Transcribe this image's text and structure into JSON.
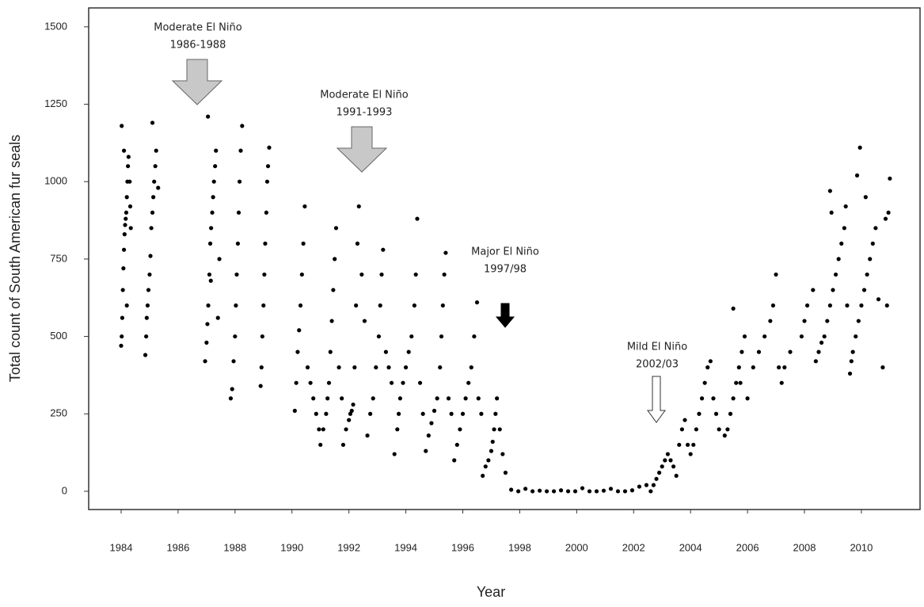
{
  "chart_data": {
    "type": "scatter",
    "x_label": "Year",
    "y_label": "Total count of South American fur seals",
    "color": "#000000",
    "xlim": [
      1982.86,
      2012.06
    ],
    "ylim": [
      -59,
      1561
    ],
    "xticks": [
      1984,
      1986,
      1988,
      1990,
      1992,
      1994,
      1996,
      1998,
      2000,
      2002,
      2004,
      2006,
      2008,
      2010
    ],
    "yticks": [
      0,
      250,
      500,
      750,
      1000,
      1250,
      1500
    ],
    "annotations": [
      [
        "Moderate El Niño",
        "1986-1988"
      ],
      [
        "Moderate El Niño",
        "1991-1993"
      ],
      [
        "Major El Niño",
        "1997/98"
      ],
      [
        "Mild El Niño",
        "2002/03"
      ]
    ],
    "x": [
      1984.0,
      1984.02,
      1984.04,
      1984.06,
      1984.08,
      1984.1,
      1984.12,
      1984.14,
      1984.16,
      1984.18,
      1984.2,
      1984.22,
      1984.24,
      1984.26,
      1984.02,
      1984.1,
      1984.3,
      1984.32,
      1984.34,
      1984.2,
      1984.85,
      1984.88,
      1984.9,
      1984.93,
      1984.96,
      1985.0,
      1985.03,
      1985.06,
      1985.1,
      1985.13,
      1985.16,
      1985.2,
      1985.23,
      1985.1,
      1985.3,
      1986.95,
      1987.0,
      1987.03,
      1987.06,
      1987.1,
      1987.13,
      1987.16,
      1987.2,
      1987.23,
      1987.26,
      1987.3,
      1987.33,
      1987.05,
      1987.15,
      1987.45,
      1987.4,
      1987.85,
      1987.9,
      1987.95,
      1988.0,
      1988.03,
      1988.06,
      1988.1,
      1988.13,
      1988.16,
      1988.2,
      1988.25,
      1988.9,
      1988.93,
      1988.96,
      1989.0,
      1989.03,
      1989.06,
      1989.1,
      1989.13,
      1989.16,
      1989.2,
      1990.1,
      1990.15,
      1990.2,
      1990.25,
      1990.3,
      1990.35,
      1990.4,
      1990.45,
      1990.55,
      1990.65,
      1990.75,
      1990.85,
      1990.95,
      1991.0,
      1991.1,
      1991.2,
      1991.25,
      1991.3,
      1991.35,
      1991.4,
      1991.45,
      1991.5,
      1991.55,
      1991.65,
      1991.75,
      1991.8,
      1991.9,
      1992.0,
      1992.05,
      1992.1,
      1992.15,
      1992.2,
      1992.25,
      1992.3,
      1992.35,
      1992.45,
      1992.55,
      1992.65,
      1992.75,
      1992.85,
      1992.95,
      1993.05,
      1993.1,
      1993.15,
      1993.2,
      1993.3,
      1993.4,
      1993.5,
      1993.6,
      1993.7,
      1993.75,
      1993.8,
      1993.9,
      1994.0,
      1994.1,
      1994.2,
      1994.3,
      1994.35,
      1994.4,
      1994.5,
      1994.6,
      1994.7,
      1994.8,
      1994.9,
      1995.0,
      1995.1,
      1995.2,
      1995.25,
      1995.3,
      1995.35,
      1995.4,
      1995.5,
      1995.6,
      1995.7,
      1995.8,
      1995.9,
      1996.0,
      1996.1,
      1996.2,
      1996.3,
      1996.4,
      1996.5,
      1996.55,
      1996.65,
      1996.7,
      1996.8,
      1996.9,
      1997.0,
      1997.05,
      1997.1,
      1997.15,
      1997.2,
      1997.3,
      1997.4,
      1997.5,
      1997.7,
      1997.95,
      1998.2,
      1998.45,
      1998.7,
      1998.95,
      1999.2,
      1999.45,
      1999.7,
      1999.95,
      2000.2,
      2000.45,
      2000.7,
      2000.95,
      2001.2,
      2001.45,
      2001.7,
      2001.95,
      2002.2,
      2002.45,
      2002.6,
      2002.7,
      2002.8,
      2002.9,
      2003.0,
      2003.1,
      2003.2,
      2003.3,
      2003.4,
      2003.5,
      2003.6,
      2003.7,
      2003.8,
      2003.9,
      2004.0,
      2004.1,
      2004.2,
      2004.3,
      2004.4,
      2004.5,
      2004.6,
      2004.7,
      2004.8,
      2004.9,
      2005.0,
      2005.2,
      2005.3,
      2005.4,
      2005.5,
      2005.6,
      2005.7,
      2005.8,
      2005.9,
      2005.5,
      2005.75,
      2006.0,
      2006.2,
      2006.4,
      2006.6,
      2006.8,
      2006.9,
      2007.0,
      2007.1,
      2007.2,
      2007.3,
      2007.5,
      2007.9,
      2008.0,
      2008.1,
      2008.3,
      2008.4,
      2008.5,
      2008.6,
      2008.7,
      2008.8,
      2008.9,
      2009.0,
      2009.1,
      2009.2,
      2009.3,
      2008.95,
      2008.9,
      2009.4,
      2009.45,
      2009.5,
      2009.6,
      2009.65,
      2009.7,
      2009.8,
      2009.9,
      2010.0,
      2010.1,
      2010.2,
      2010.3,
      2010.4,
      2010.5,
      2009.85,
      2009.95,
      2010.15,
      2010.6,
      2010.75,
      2010.85,
      2010.95,
      2011.0,
      2010.9
    ],
    "values": [
      470,
      500,
      560,
      650,
      720,
      780,
      830,
      860,
      880,
      900,
      950,
      1000,
      1050,
      1080,
      1180,
      1100,
      1000,
      920,
      850,
      600,
      440,
      500,
      560,
      600,
      650,
      700,
      760,
      850,
      900,
      950,
      1000,
      1050,
      1100,
      1190,
      980,
      420,
      480,
      540,
      600,
      700,
      800,
      850,
      900,
      950,
      1000,
      1050,
      1100,
      1210,
      680,
      750,
      560,
      300,
      330,
      420,
      500,
      600,
      700,
      800,
      900,
      1000,
      1100,
      1180,
      340,
      400,
      500,
      600,
      700,
      800,
      900,
      1000,
      1050,
      1110,
      260,
      350,
      450,
      520,
      600,
      700,
      800,
      920,
      400,
      350,
      300,
      250,
      200,
      150,
      200,
      250,
      300,
      350,
      450,
      550,
      650,
      750,
      850,
      400,
      300,
      150,
      200,
      230,
      250,
      260,
      280,
      400,
      600,
      800,
      920,
      700,
      550,
      180,
      250,
      300,
      400,
      500,
      600,
      700,
      780,
      450,
      400,
      350,
      120,
      200,
      250,
      300,
      350,
      400,
      450,
      500,
      600,
      700,
      880,
      350,
      250,
      130,
      180,
      220,
      260,
      300,
      400,
      500,
      600,
      700,
      770,
      300,
      250,
      100,
      150,
      200,
      250,
      300,
      350,
      400,
      500,
      610,
      300,
      250,
      50,
      80,
      100,
      130,
      160,
      200,
      250,
      300,
      200,
      120,
      60,
      5,
      0,
      8,
      0,
      2,
      0,
      0,
      3,
      0,
      0,
      10,
      0,
      0,
      2,
      8,
      0,
      0,
      3,
      15,
      20,
      0,
      20,
      40,
      60,
      80,
      100,
      120,
      100,
      80,
      50,
      150,
      200,
      230,
      150,
      120,
      150,
      200,
      250,
      300,
      350,
      400,
      420,
      300,
      250,
      200,
      180,
      200,
      250,
      300,
      350,
      400,
      450,
      500,
      590,
      350,
      300,
      400,
      450,
      500,
      550,
      600,
      700,
      400,
      350,
      400,
      450,
      500,
      550,
      600,
      650,
      420,
      450,
      480,
      500,
      550,
      600,
      650,
      700,
      750,
      800,
      900,
      970,
      850,
      920,
      600,
      380,
      420,
      450,
      500,
      550,
      600,
      650,
      700,
      750,
      800,
      850,
      1020,
      1110,
      950,
      620,
      400,
      880,
      900,
      1010,
      600
    ]
  }
}
